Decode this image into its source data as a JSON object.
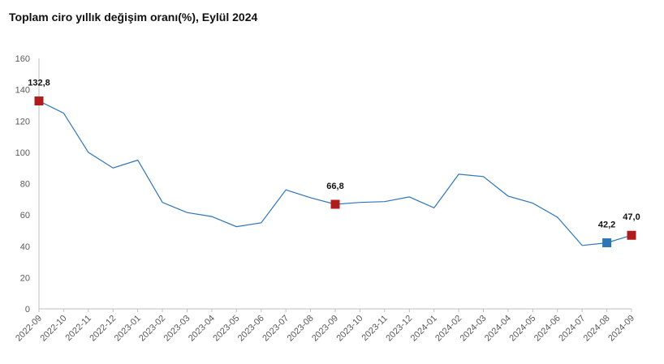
{
  "title": "Toplam ciro yıllık değişim oranı(%), Eylül 2024",
  "colors": {
    "line": "#2e75b6",
    "highlight_red": "#b01c1c",
    "highlight_blue": "#2e75b6",
    "axis": "#bfbfbf",
    "tick_text": "#595959"
  },
  "chart_data": {
    "type": "line",
    "title": "Toplam ciro yıllık değişim oranı(%), Eylül 2024",
    "xlabel": "",
    "ylabel": "",
    "ylim": [
      0,
      160
    ],
    "yticks": [
      0,
      20,
      40,
      60,
      80,
      100,
      120,
      140,
      160
    ],
    "grid": false,
    "categories": [
      "2022-09",
      "2022-10",
      "2022-11",
      "2022-12",
      "2023-01",
      "2023-02",
      "2023-03",
      "2023-04",
      "2023-05",
      "2023-06",
      "2023-07",
      "2023-08",
      "2023-09",
      "2023-10",
      "2023-11",
      "2023-12",
      "2024-01",
      "2024-02",
      "2024-03",
      "2024-04",
      "2024-05",
      "2024-06",
      "2024-07",
      "2024-08",
      "2024-09"
    ],
    "series": [
      {
        "values": [
          132.8,
          125,
          100,
          90,
          95,
          68,
          61.5,
          59,
          52.5,
          55,
          76,
          71,
          66.8,
          68,
          68.5,
          71.5,
          64.5,
          86,
          84.5,
          72,
          67.5,
          58.5,
          40.5,
          42.2,
          47.0
        ]
      }
    ],
    "markers": [
      {
        "index": 0,
        "label": "132,8",
        "color": "red"
      },
      {
        "index": 12,
        "label": "66,8",
        "color": "red"
      },
      {
        "index": 23,
        "label": "42,2",
        "color": "blue"
      },
      {
        "index": 24,
        "label": "47,0",
        "color": "red"
      }
    ]
  }
}
